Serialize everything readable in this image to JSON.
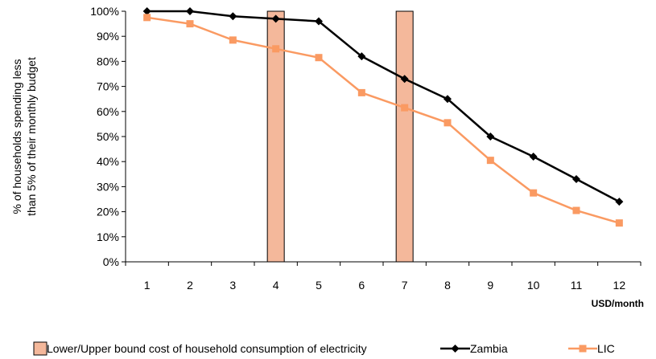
{
  "chart_data": {
    "type": "line",
    "title": "",
    "xlabel": "USD/month",
    "ylabel_lines": [
      "% of households spending less",
      "than 5% of their monthly budget"
    ],
    "ylim": [
      0,
      100
    ],
    "yticks": [
      0,
      10,
      20,
      30,
      40,
      50,
      60,
      70,
      80,
      90,
      100
    ],
    "ytick_labels": [
      "0%",
      "10%",
      "20%",
      "30%",
      "40%",
      "50%",
      "60%",
      "70%",
      "80%",
      "90%",
      "100%"
    ],
    "categories": [
      "1",
      "2",
      "3",
      "4",
      "5",
      "6",
      "7",
      "8",
      "9",
      "10",
      "11",
      "12"
    ],
    "series": [
      {
        "name": "Zambia",
        "color": "#000000",
        "marker": "diamond",
        "values": [
          100,
          100,
          98,
          97,
          96,
          82,
          73,
          65,
          50,
          42,
          33,
          24
        ]
      },
      {
        "name": "LIC",
        "color": "#FA9A62",
        "marker": "square",
        "values": [
          97.5,
          95,
          88.5,
          85,
          81.5,
          67.5,
          61.5,
          55.5,
          40.5,
          27.5,
          20.5,
          15.5
        ]
      }
    ],
    "bounds": {
      "name": "Lower/Upper bound cost of household consumption of electricity",
      "categories": [
        "4",
        "7"
      ],
      "value": 100,
      "color": "#F4B89B"
    },
    "grid": false,
    "legend_position": "bottom"
  }
}
